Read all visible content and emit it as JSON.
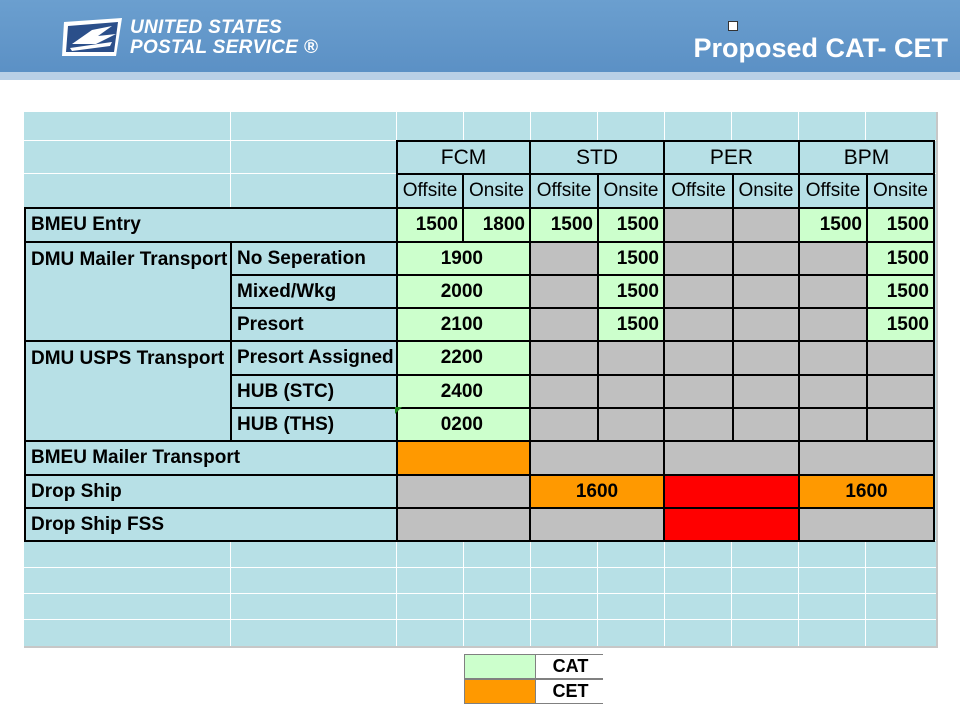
{
  "header": {
    "logo_line1": "UNITED STATES",
    "logo_line2": "POSTAL SERVICE ®",
    "title": "Proposed CAT- CET"
  },
  "colors": {
    "header_blue": "#5a8fc4",
    "sheet_cyan": "#b7e0e6",
    "cat_green": "#ccffcc",
    "cet_orange": "#ff9900",
    "red": "#ff0000",
    "grey": "#c0c0c0"
  },
  "table": {
    "classes": [
      "FCM",
      "STD",
      "PER",
      "BPM"
    ],
    "subheaders": [
      "Offsite",
      "Onsite",
      "Offsite",
      "Onsite",
      "Offsite",
      "Onsite",
      "Offsite",
      "Onsite"
    ],
    "rows": {
      "bmeu_entry": {
        "label": "BMEU Entry",
        "values": [
          "1500",
          "1800",
          "1500",
          "1500",
          "",
          "",
          "1500",
          "1500"
        ]
      },
      "dmu_mailer_transport": {
        "label": "DMU Mailer Transport",
        "sub": [
          {
            "label": "No Seperation",
            "fcm": "1900",
            "std_onsite": "1500",
            "bpm_onsite": "1500"
          },
          {
            "label": "Mixed/Wkg",
            "fcm": "2000",
            "std_onsite": "1500",
            "bpm_onsite": "1500"
          },
          {
            "label": "Presort",
            "fcm": "2100",
            "std_onsite": "1500",
            "bpm_onsite": "1500"
          }
        ]
      },
      "dmu_usps_transport": {
        "label": "DMU USPS Transport",
        "sub": [
          {
            "label": "Presort Assigned",
            "fcm": "2200"
          },
          {
            "label": "HUB (STC)",
            "fcm": "2400"
          },
          {
            "label": "HUB (THS)",
            "fcm": "0200"
          }
        ]
      },
      "bmeu_mailer_transport": {
        "label": "BMEU Mailer Transport"
      },
      "drop_ship": {
        "label": "Drop Ship",
        "std": "1600",
        "bpm": "1600"
      },
      "drop_ship_fss": {
        "label": "Drop Ship FSS"
      }
    }
  },
  "legend": [
    {
      "label": "CAT",
      "color": "#ccffcc"
    },
    {
      "label": "CET",
      "color": "#ff9900"
    }
  ]
}
